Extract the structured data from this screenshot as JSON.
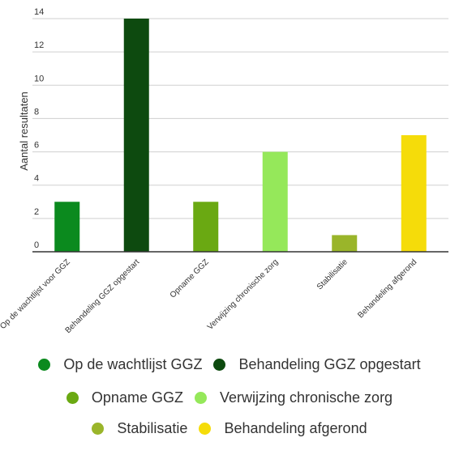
{
  "chart_data": {
    "type": "bar",
    "ylabel": "Aantal resultaten",
    "ylim": [
      0,
      14
    ],
    "yticks": [
      "0",
      "2",
      "4",
      "6",
      "8",
      "10",
      "12",
      "14"
    ],
    "grid": true,
    "legend_position": "bottom",
    "categories": [
      "Op de wachtlijst voor GGZ",
      "Behandeling GGZ opgestart",
      "Opname GGZ",
      "Verwijzing chronische zorg",
      "Stabilisatie",
      "Behandeling afgerond"
    ],
    "values": [
      3,
      14,
      3,
      6,
      1,
      7
    ],
    "colors": [
      "#0b8a1e",
      "#0d4a0f",
      "#6aa912",
      "#95e85a",
      "#9ab52a",
      "#f5dc0a"
    ]
  },
  "legend": {
    "items": [
      {
        "label": "Op de wachtlijst GGZ",
        "color": "#0b8a1e"
      },
      {
        "label": "Behandeling GGZ opgestart",
        "color": "#0d4a0f"
      },
      {
        "label": "Opname GGZ",
        "color": "#6aa912"
      },
      {
        "label": "Verwijzing chronische zorg",
        "color": "#95e85a"
      },
      {
        "label": "Stabilisatie",
        "color": "#9ab52a"
      },
      {
        "label": "Behandeling afgerond",
        "color": "#f5dc0a"
      }
    ]
  }
}
